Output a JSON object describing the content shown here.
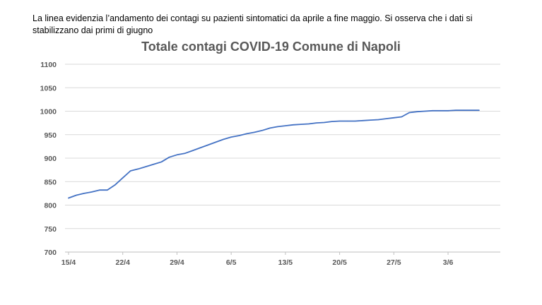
{
  "caption": "La linea evidenzia l’andamento dei contagi su pazienti sintomatici da aprile a fine maggio. Si osserva che i dati si stabilizzano dai primi di giugno",
  "chart_data": {
    "type": "line",
    "title": "Totale contagi COVID-19 Comune di Napoli",
    "xlabel": "",
    "ylabel": "",
    "ylim": [
      700,
      1100
    ],
    "yticks": [
      700,
      750,
      800,
      850,
      900,
      950,
      1000,
      1050,
      1100
    ],
    "xtick_labels": [
      "15/4",
      "22/4",
      "29/4",
      "6/5",
      "13/5",
      "20/5",
      "27/5",
      "3/6"
    ],
    "grid": true,
    "legend": "none",
    "color": "#4472C4",
    "x": [
      "15/4",
      "16/4",
      "17/4",
      "18/4",
      "19/4",
      "20/4",
      "21/4",
      "22/4",
      "23/4",
      "24/4",
      "25/4",
      "26/4",
      "27/4",
      "28/4",
      "29/4",
      "30/4",
      "1/5",
      "2/5",
      "3/5",
      "4/5",
      "5/5",
      "6/5",
      "7/5",
      "8/5",
      "9/5",
      "10/5",
      "11/5",
      "12/5",
      "13/5",
      "14/5",
      "15/5",
      "16/5",
      "17/5",
      "18/5",
      "19/5",
      "20/5",
      "21/5",
      "22/5",
      "23/5",
      "24/5",
      "25/5",
      "26/5",
      "27/5",
      "28/5",
      "29/5",
      "30/5",
      "31/5",
      "1/6",
      "2/6",
      "3/6",
      "4/6",
      "5/6",
      "6/6",
      "7/6"
    ],
    "values": [
      815,
      821,
      825,
      828,
      832,
      832,
      843,
      858,
      873,
      877,
      882,
      887,
      892,
      902,
      907,
      910,
      916,
      922,
      928,
      934,
      940,
      945,
      948,
      952,
      955,
      959,
      964,
      967,
      969,
      971,
      972,
      973,
      975,
      976,
      978,
      979,
      979,
      979,
      980,
      981,
      982,
      984,
      986,
      988,
      997,
      999,
      1000,
      1001,
      1001,
      1001,
      1002,
      1002,
      1002,
      1002
    ]
  }
}
